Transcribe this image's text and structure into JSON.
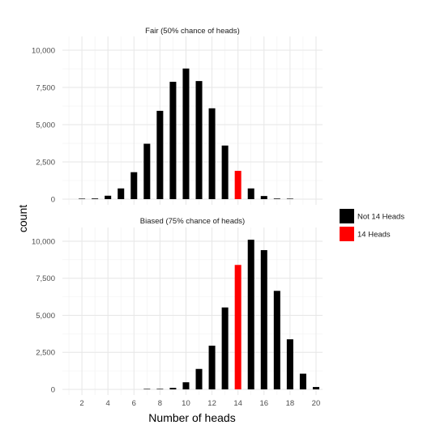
{
  "chart_data": {
    "type": "bar",
    "xlabel": "Number of heads",
    "ylabel": "count",
    "x": [
      1,
      2,
      3,
      4,
      5,
      6,
      7,
      8,
      9,
      10,
      11,
      12,
      13,
      14,
      15,
      16,
      17,
      18,
      19,
      20
    ],
    "x_ticks": [
      2,
      4,
      6,
      8,
      10,
      12,
      14,
      16,
      18,
      20
    ],
    "x_tick_labels": [
      "2",
      "4",
      "6",
      "8",
      "10",
      "12",
      "14",
      "16",
      "18",
      "20"
    ],
    "xlim": [
      0.5,
      20.5
    ],
    "ylim": [
      0,
      10600
    ],
    "y_ticks": [
      0,
      2500,
      5000,
      7500,
      10000
    ],
    "y_tick_labels": [
      "0",
      "2,500",
      "5,000",
      "7,500",
      "10,000"
    ],
    "highlight_x": 14,
    "legend": {
      "placement": "right",
      "entries": [
        {
          "label": "Not 14 Heads",
          "color": "#000000"
        },
        {
          "label": "14 Heads",
          "color": "#ff0000"
        }
      ]
    },
    "grid": true,
    "panels": [
      {
        "title": "Fair (50% chance of heads)",
        "values": [
          0,
          10,
          45,
          230,
          720,
          1810,
          3720,
          5930,
          7880,
          8770,
          7930,
          6100,
          3600,
          1900,
          720,
          210,
          40,
          10,
          0,
          0
        ]
      },
      {
        "title": "Biased (75% chance of heads)",
        "values": [
          0,
          0,
          0,
          0,
          0,
          0,
          10,
          35,
          100,
          480,
          1380,
          2950,
          5530,
          8400,
          10100,
          9400,
          6650,
          3380,
          1060,
          160
        ]
      }
    ]
  }
}
